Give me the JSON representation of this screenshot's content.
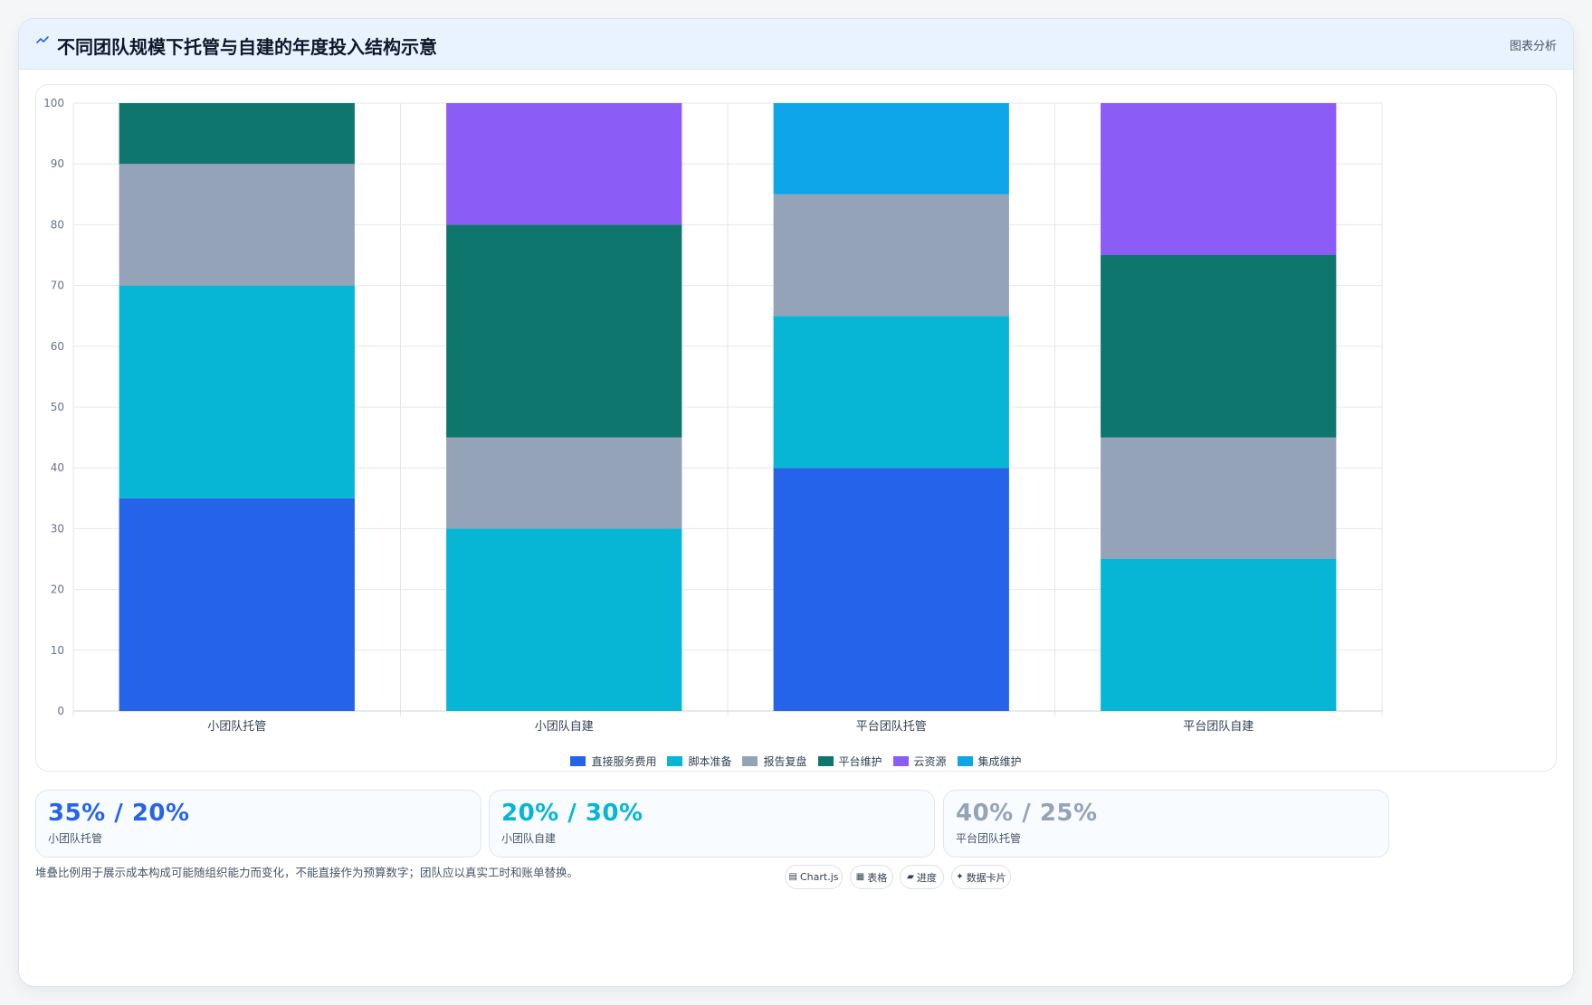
{
  "header": {
    "icon": "chart-line-icon",
    "title": "不同团队规模下托管与自建的年度投入结构示意",
    "action_label": "图表分析"
  },
  "chart_data": {
    "type": "bar",
    "stacked": true,
    "categories": [
      "小团队托管",
      "小团队自建",
      "平台团队托管",
      "平台团队自建"
    ],
    "ylim": [
      0,
      100
    ],
    "yticks": [
      0,
      10,
      20,
      30,
      40,
      50,
      60,
      70,
      80,
      90,
      100
    ],
    "grid": true,
    "legend_position": "bottom",
    "series": [
      {
        "name": "直接服务费用",
        "color": "#2563eb",
        "values": [
          35,
          0,
          40,
          0
        ]
      },
      {
        "name": "脚本准备",
        "color": "#06b6d4",
        "values": [
          35,
          30,
          25,
          25
        ]
      },
      {
        "name": "报告复盘",
        "color": "#94a3b8",
        "values": [
          20,
          15,
          20,
          20
        ]
      },
      {
        "name": "平台维护",
        "color": "#0f766e",
        "values": [
          10,
          35,
          0,
          30
        ]
      },
      {
        "name": "云资源",
        "color": "#8b5cf6",
        "values": [
          0,
          20,
          0,
          25
        ]
      },
      {
        "name": "集成维护",
        "color": "#0ea5e9",
        "values": [
          0,
          0,
          15,
          0
        ]
      }
    ]
  },
  "stats": [
    {
      "value": "35% / 20%",
      "label": "小团队托管",
      "color": "#2563eb"
    },
    {
      "value": "20% / 30%",
      "label": "小团队自建",
      "color": "#06b6d4"
    },
    {
      "value": "40% / 25%",
      "label": "平台团队托管",
      "color": "#94a3b8"
    }
  ],
  "footnote": "堆叠比例用于展示成本构成可能随组织能力而变化，不能直接作为预算数字；团队应以真实工时和账单替换。",
  "tags": [
    {
      "icon": "▤",
      "label": "Chart.js"
    },
    {
      "icon": "▦",
      "label": "表格"
    },
    {
      "icon": "▰",
      "label": "进度"
    },
    {
      "icon": "✦",
      "label": "数据卡片"
    }
  ]
}
